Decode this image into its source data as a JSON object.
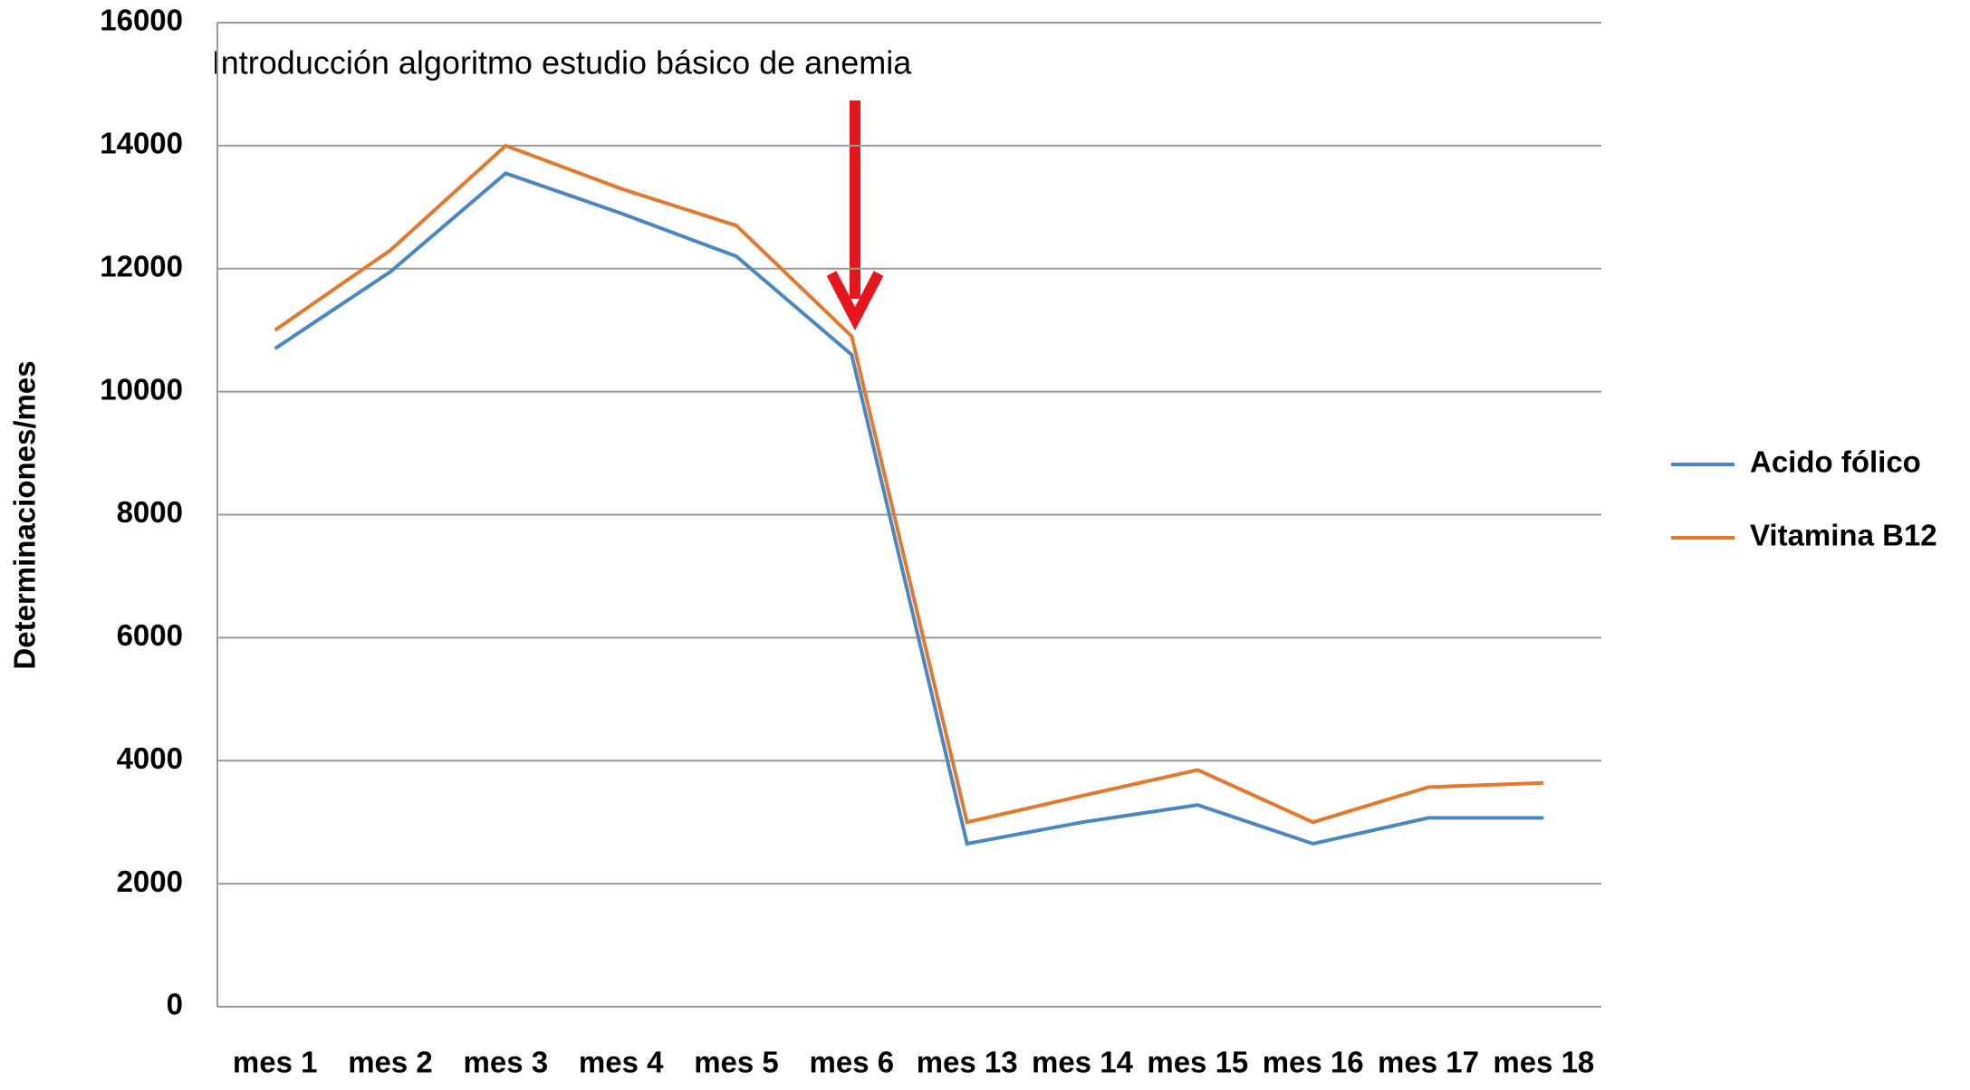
{
  "chart_data": {
    "type": "line",
    "annotation": "Introducción algoritmo estudio básico de anemia",
    "y_label": "Determinaciones/mes",
    "categories": [
      "mes 1",
      "mes 2",
      "mes 3",
      "mes 4",
      "mes 5",
      "mes 6",
      "mes 13",
      "mes 14",
      "mes 15",
      "mes 16",
      "mes 17",
      "mes 18"
    ],
    "series": [
      {
        "name": "Acido fólico",
        "color": "#4a86c0",
        "values": [
          10700,
          11950,
          13550,
          12900,
          12200,
          10600,
          2650,
          3000,
          3280,
          2650,
          3070,
          3070
        ]
      },
      {
        "name": "Vitamina B12",
        "color": "#e4782c",
        "values": [
          11000,
          12300,
          14000,
          13300,
          12700,
          10900,
          3000,
          3430,
          3850,
          3000,
          3570,
          3640
        ]
      }
    ],
    "ylim": [
      0,
      16000
    ],
    "yticks": [
      0,
      2000,
      4000,
      6000,
      8000,
      10000,
      12000,
      14000,
      16000
    ],
    "grid": true,
    "legend": "right"
  }
}
